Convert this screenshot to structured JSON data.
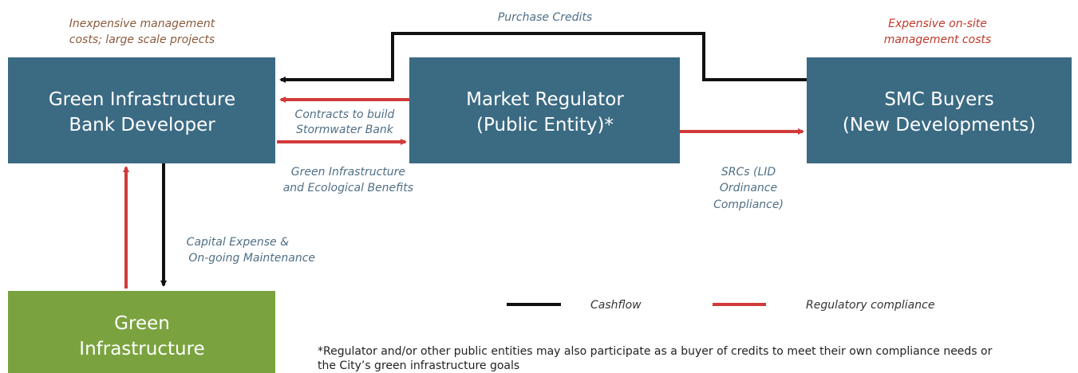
{
  "nodes": [
    {
      "lines": [
        "Green Infrastructure",
        "Bank Developer"
      ]
    },
    {
      "lines": [
        "Market Regulator",
        "(Public Entity)*"
      ]
    },
    {
      "lines": [
        "SMC Buyers",
        "(New Developments)"
      ]
    },
    {
      "lines": [
        "Green",
        "Infrastructure"
      ]
    }
  ],
  "notes": [
    {
      "lines": [
        "Inexpensive management",
        "costs; large scale projects"
      ]
    },
    {
      "lines": [
        "Expensive on-site",
        "management costs"
      ]
    }
  ],
  "edges": [
    {
      "lines": [
        "Purchase Credits"
      ]
    },
    {
      "lines": [
        "Contracts to build",
        "Stormwater Bank"
      ]
    },
    {
      "lines": [
        "Green Infrastructure",
        "and Ecological Benefits"
      ]
    },
    {
      "lines": [
        "SRCs (LID",
        "Ordinance",
        "Compliance)"
      ]
    },
    {
      "lines": [
        "Capital Expense &",
        "On-going Maintenance"
      ]
    }
  ],
  "legend": [
    "Cashflow",
    "Regulatory compliance"
  ],
  "footnote": [
    "*Regulator and/or other public entities may also participate as a buyer of credits to meet their own compliance needs or",
    "the City’s green infrastructure goals"
  ]
}
